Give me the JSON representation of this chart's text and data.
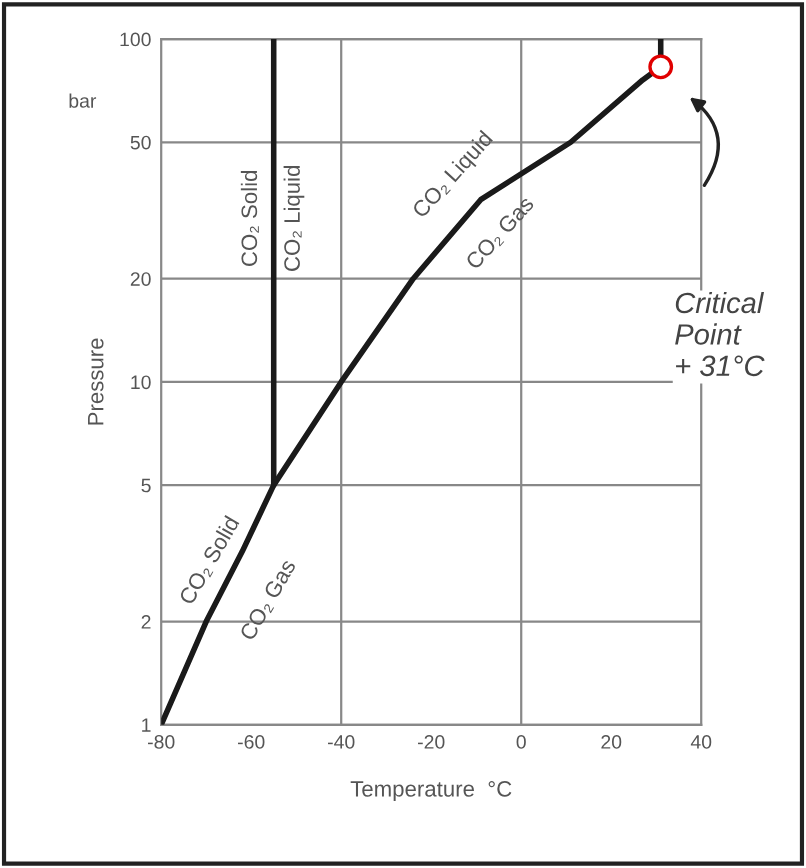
{
  "chart_data": {
    "type": "line",
    "xlabel": "Temperature  °C",
    "ylabel": "Pressure",
    "log": "y",
    "xlim": [
      -80,
      40
    ],
    "xticks": [
      -80,
      -60,
      -40,
      -20,
      0,
      20,
      40
    ],
    "ylim": [
      1,
      100
    ],
    "yticks": [
      1,
      2,
      5,
      10,
      20,
      50,
      100
    ],
    "grid": "y",
    "line_style": "solid",
    "marker": "none",
    "ref_lines": [
      {
        "axis": "x",
        "value": -40,
        "label": null,
        "color": "#888888"
      },
      {
        "axis": "x",
        "value": 0,
        "label": null,
        "color": "#888888"
      }
    ],
    "series": [
      {
        "color": "#1a1a1a",
        "x": [
          -80,
          -70,
          -62,
          -55,
          -55
        ],
        "values": [
          1,
          2,
          3.2,
          5,
          100
        ]
      },
      {
        "color": "#1a1a1a",
        "x": [
          -55,
          -40,
          -24,
          -9,
          11,
          27,
          31
        ],
        "values": [
          5,
          10,
          20,
          34,
          50,
          76,
          83
        ]
      },
      {
        "color": "#1a1a1a",
        "x": [
          31,
          31
        ],
        "values": [
          83,
          100
        ]
      },
      {
        "type": "scatter",
        "marker": "circle",
        "color": "#e00000",
        "x": [
          31
        ],
        "values": [
          83
        ]
      }
    ],
    "annotations": [
      "bar",
      "CO₂ Solid",
      "CO₂ Liquid",
      "CO₂ Liquid",
      "CO₂ Gas",
      "CO₂ Solid",
      "CO₂ Gas",
      "Critical\nPoint\n+ 31°C"
    ]
  }
}
